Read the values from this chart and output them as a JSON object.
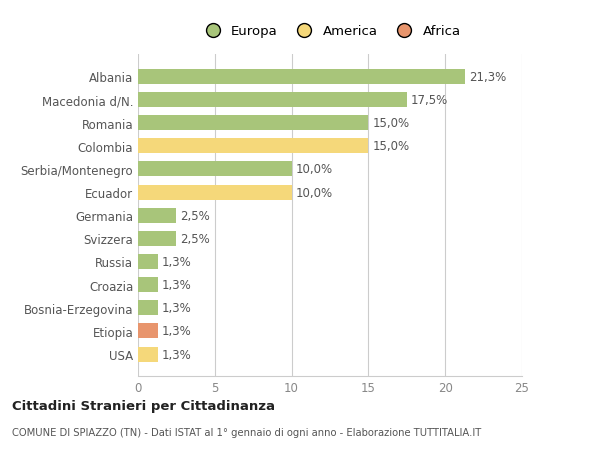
{
  "categories": [
    "USA",
    "Etiopia",
    "Bosnia-Erzegovina",
    "Croazia",
    "Russia",
    "Svizzera",
    "Germania",
    "Ecuador",
    "Serbia/Montenegro",
    "Colombia",
    "Romania",
    "Macedonia d/N.",
    "Albania"
  ],
  "values": [
    1.3,
    1.3,
    1.3,
    1.3,
    1.3,
    2.5,
    2.5,
    10.0,
    10.0,
    15.0,
    15.0,
    17.5,
    21.3
  ],
  "labels": [
    "1,3%",
    "1,3%",
    "1,3%",
    "1,3%",
    "1,3%",
    "2,5%",
    "2,5%",
    "10,0%",
    "10,0%",
    "15,0%",
    "15,0%",
    "17,5%",
    "21,3%"
  ],
  "colors": [
    "#f5d87a",
    "#e8956d",
    "#a8c57a",
    "#a8c57a",
    "#a8c57a",
    "#a8c57a",
    "#a8c57a",
    "#f5d87a",
    "#a8c57a",
    "#f5d87a",
    "#a8c57a",
    "#a8c57a",
    "#a8c57a"
  ],
  "legend_labels": [
    "Europa",
    "America",
    "Africa"
  ],
  "legend_colors": [
    "#a8c57a",
    "#f5d87a",
    "#e8956d"
  ],
  "xlim": [
    0,
    25
  ],
  "xticks": [
    0,
    5,
    10,
    15,
    20,
    25
  ],
  "title": "Cittadini Stranieri per Cittadinanza",
  "subtitle": "COMUNE DI SPIAZZO (TN) - Dati ISTAT al 1° gennaio di ogni anno - Elaborazione TUTTITALIA.IT",
  "bg_color": "#ffffff",
  "grid_color": "#cccccc",
  "bar_height": 0.65,
  "label_fontsize": 8.5,
  "tick_fontsize": 8.5
}
